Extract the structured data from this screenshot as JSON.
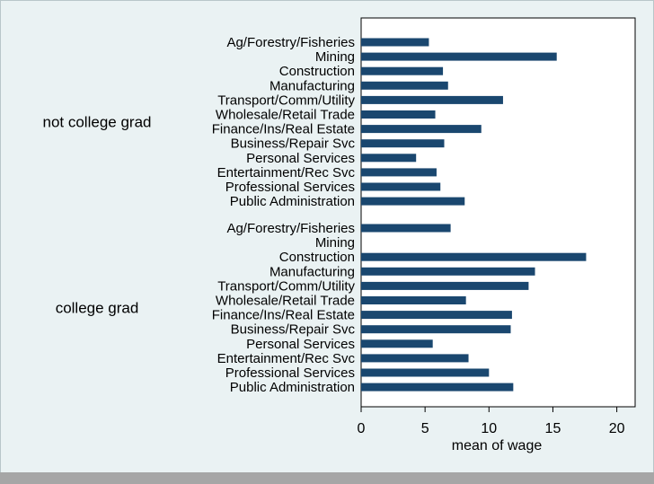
{
  "chart_data": {
    "type": "bar",
    "orientation": "horizontal",
    "title": "",
    "xlabel": "mean of wage",
    "ylabel": "",
    "xlim": [
      0,
      22
    ],
    "xticks": [
      0,
      5,
      10,
      15,
      20
    ],
    "grid": false,
    "bar_color": "#1a476f",
    "plot_background": "#ffffff",
    "outer_background": "#eaf2f3",
    "categories": [
      "Ag/Forestry/Fisheries",
      "Mining",
      "Construction",
      "Manufacturing",
      "Transport/Comm/Utility",
      "Wholesale/Retail Trade",
      "Finance/Ins/Real Estate",
      "Business/Repair Svc",
      "Personal Services",
      "Entertainment/Rec Svc",
      "Professional Services",
      "Public Administration"
    ],
    "groups": [
      {
        "name": "not college grad",
        "values": [
          5.3,
          15.3,
          6.4,
          6.8,
          11.1,
          5.8,
          9.4,
          6.5,
          4.3,
          5.9,
          6.2,
          8.1
        ]
      },
      {
        "name": "college grad",
        "values": [
          7.0,
          null,
          17.6,
          13.6,
          13.1,
          8.2,
          11.8,
          11.7,
          5.6,
          8.4,
          10.0,
          11.9
        ]
      }
    ]
  }
}
